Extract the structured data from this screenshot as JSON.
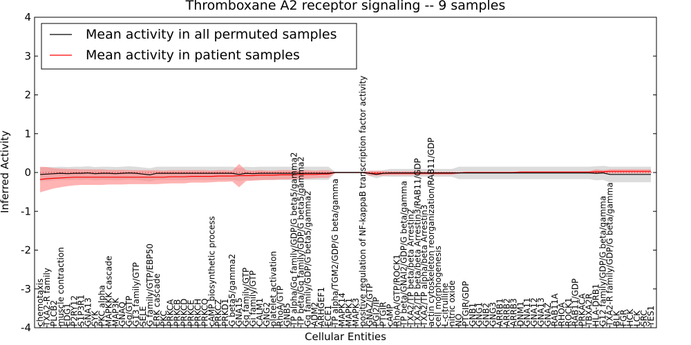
{
  "chart_data": {
    "type": "line",
    "title": "Thromboxane A2 receptor signaling -- 9 samples",
    "xlabel": "Cellular Entities",
    "ylabel": "Inferred Activity",
    "ylim": [
      -4,
      4
    ],
    "yticks": [
      -4,
      -3,
      -2,
      -1,
      0,
      1,
      2,
      3,
      4
    ],
    "grid": false,
    "legend_position": "top-left",
    "categories": [
      "chemotaxis",
      "TXA2-R family",
      "PLCB2",
      "muscle contraction",
      "EDG1",
      "P2RY12",
      "S1P3R1",
      "GNA13",
      "SYK",
      "PKC alpha",
      "MAPKKK cascade",
      "MAP3K",
      "GNAQ",
      "Gq/GTP",
      "G13 family/GTP",
      "SELE",
      "G family/GTP/EBP50",
      "ERK cascade",
      "PKC",
      "PRKCA",
      "PRKCB",
      "PRKCD",
      "PRKCE",
      "PRKCH",
      "PRKCQ",
      "cAMP biosynthetic process",
      "PRKCZ",
      "PRKD1",
      "G beta5/gamma2",
      "GNA15",
      "Gq family/GTP",
      "Gi family/GTP",
      "CALM1",
      "GNG2",
      "platelet activation",
      "RhoA/GTP",
      "GNB5",
      "TP alpha/Gq family/GDP/G beta5/gamma2",
      "TP beta/Gq family/GDP/G beta5/gamma2",
      "Gq family/GDP/G beta5/gamma2",
      "ADM2",
      "ARHGEF1",
      "ECE1",
      "TP alpha/TGM2/GDP/G beta/gamma",
      "MAPK14",
      "MAPK1",
      "MAPK3",
      "positive regulation of NF-kappaB transcription factor activity",
      "GNAZ/GTP",
      "PGI2/IP",
      "PTGIR",
      "cAMP",
      "RhoA/GTP/ROCK1",
      "TP beta/GNAI2/GDP/G beta/gamma",
      "TXA2/TP beta/beta Arrestin2",
      "TXA2/TP beta/beta Arrestin3/RAB11/GDP",
      "TXA2/TP alpha/beta Arrestin3",
      "actin cytoskeleton reorganization/RAB11/GDP",
      "cell morphogenesis",
      "L-citrulline",
      "nitric oxide",
      "NO",
      "PTGIR/GDP",
      "GNB1",
      "GNG1",
      "GNB2",
      "GNG3",
      "ARRB1",
      "ARRB2",
      "ARRB3",
      "DNM1",
      "GNA11",
      "GNA12",
      "GNA13",
      "GNAZ",
      "RAB11A",
      "RHOA",
      "ROCK1",
      "RAB11/GDP",
      "PRKACA",
      "TBXA2R",
      "HLA-DRB1",
      "G12 family/GDP/G beta/gamma",
      "TXA2-R family/GDP/G beta/gamma",
      "BLK",
      "FGR",
      "HCK",
      "LCK",
      "SRC",
      "YES1"
    ],
    "series": [
      {
        "name": "Mean activity in all permuted samples",
        "color": "#000000",
        "values": [
          -0.05,
          -0.04,
          -0.03,
          -0.02,
          -0.03,
          -0.02,
          -0.02,
          -0.01,
          -0.03,
          -0.02,
          -0.02,
          -0.03,
          -0.02,
          -0.01,
          -0.02,
          -0.04,
          -0.06,
          -0.02,
          -0.02,
          -0.02,
          -0.02,
          -0.02,
          -0.02,
          -0.02,
          -0.02,
          -0.02,
          -0.02,
          -0.02,
          -0.02,
          -0.05,
          -0.02,
          -0.03,
          -0.02,
          -0.02,
          -0.02,
          -0.02,
          -0.02,
          -0.02,
          -0.02,
          -0.02,
          -0.02,
          -0.02,
          -0.02,
          0.0,
          0.0,
          0.0,
          0.0,
          0.0,
          -0.02,
          -0.05,
          -0.02,
          -0.01,
          -0.01,
          -0.01,
          -0.01,
          -0.01,
          -0.01,
          -0.01,
          -0.01,
          -0.01,
          -0.01,
          -0.01,
          -0.01,
          -0.01,
          -0.01,
          -0.01,
          -0.01,
          -0.01,
          -0.01,
          -0.01,
          -0.01,
          -0.01,
          -0.01,
          -0.01,
          -0.01,
          -0.01,
          -0.01,
          -0.01,
          -0.01,
          -0.01,
          -0.01,
          -0.02,
          -0.01,
          -0.05,
          -0.05,
          -0.05,
          -0.05,
          -0.05,
          -0.05,
          -0.05
        ],
        "band": [
          0.18,
          0.18,
          0.17,
          0.17,
          0.17,
          0.17,
          0.17,
          0.17,
          0.17,
          0.17,
          0.17,
          0.17,
          0.17,
          0.17,
          0.17,
          0.17,
          0.17,
          0.17,
          0.17,
          0.17,
          0.17,
          0.17,
          0.17,
          0.17,
          0.17,
          0.17,
          0.17,
          0.17,
          0.17,
          0.17,
          0.17,
          0.17,
          0.17,
          0.17,
          0.17,
          0.17,
          0.17,
          0.17,
          0.17,
          0.17,
          0.17,
          0.17,
          0.17,
          0.02,
          0.02,
          0.02,
          0.02,
          0.02,
          0.07,
          0.1,
          0.08,
          0.1,
          0.1,
          0.1,
          0.1,
          0.1,
          0.1,
          0.1,
          0.1,
          0.1,
          0.1,
          0.16,
          0.16,
          0.16,
          0.16,
          0.16,
          0.16,
          0.16,
          0.16,
          0.16,
          0.16,
          0.16,
          0.16,
          0.16,
          0.16,
          0.16,
          0.16,
          0.16,
          0.16,
          0.16,
          0.16,
          0.18,
          0.18,
          0.2,
          0.2,
          0.2,
          0.2,
          0.2,
          0.2,
          0.2
        ]
      },
      {
        "name": "Mean activity in patient samples",
        "color": "#ff0000",
        "values": [
          -0.18,
          -0.16,
          -0.15,
          -0.14,
          -0.13,
          -0.12,
          -0.12,
          -0.12,
          -0.12,
          -0.12,
          -0.12,
          -0.12,
          -0.12,
          -0.12,
          -0.12,
          -0.12,
          -0.12,
          -0.12,
          -0.12,
          -0.11,
          -0.11,
          -0.11,
          -0.1,
          -0.1,
          -0.1,
          -0.1,
          -0.09,
          -0.09,
          -0.09,
          -0.08,
          -0.08,
          -0.08,
          -0.07,
          -0.07,
          -0.07,
          -0.06,
          -0.06,
          -0.06,
          -0.05,
          -0.05,
          -0.05,
          -0.04,
          -0.04,
          0.0,
          0.0,
          0.0,
          0.0,
          0.0,
          -0.02,
          -0.02,
          -0.02,
          -0.02,
          -0.02,
          -0.02,
          -0.02,
          -0.02,
          -0.02,
          -0.02,
          -0.02,
          -0.02,
          -0.02,
          -0.01,
          0.0,
          0.0,
          0.0,
          0.0,
          0.0,
          0.0,
          0.0,
          0.0,
          0.01,
          0.01,
          0.01,
          0.01,
          0.01,
          0.01,
          0.01,
          0.01,
          0.01,
          0.01,
          0.01,
          0.02,
          0.02,
          0.03,
          0.03,
          0.03,
          0.03,
          0.03,
          0.03,
          0.03
        ],
        "band": [
          0.33,
          0.3,
          0.26,
          0.24,
          0.22,
          0.21,
          0.2,
          0.2,
          0.2,
          0.2,
          0.19,
          0.19,
          0.19,
          0.18,
          0.18,
          0.18,
          0.18,
          0.18,
          0.17,
          0.17,
          0.17,
          0.17,
          0.16,
          0.16,
          0.16,
          0.15,
          0.15,
          0.15,
          0.14,
          0.3,
          0.14,
          0.13,
          0.13,
          0.12,
          0.12,
          0.12,
          0.12,
          0.11,
          0.11,
          0.11,
          0.1,
          0.1,
          0.1,
          0.01,
          0.01,
          0.01,
          0.01,
          0.01,
          0.06,
          0.06,
          0.06,
          0.05,
          0.05,
          0.05,
          0.05,
          0.05,
          0.04,
          0.04,
          0.04,
          0.04,
          0.04,
          0.02,
          0.02,
          0.02,
          0.02,
          0.02,
          0.02,
          0.02,
          0.02,
          0.02,
          0.02,
          0.02,
          0.02,
          0.02,
          0.02,
          0.02,
          0.02,
          0.02,
          0.02,
          0.02,
          0.02,
          0.06,
          0.04,
          0.05,
          0.05,
          0.05,
          0.05,
          0.05,
          0.05,
          0.05
        ]
      }
    ],
    "colors": {
      "permuted_band": "#bfbfbf",
      "patient_band": "#ff8080",
      "zero_dotted": "#ff0000"
    }
  }
}
